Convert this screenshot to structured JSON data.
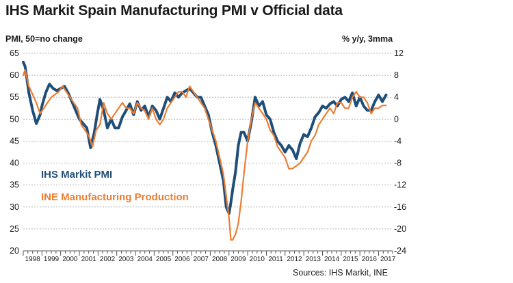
{
  "title": "IHS Markit Spain Manufacturing PMI v Official data",
  "source": "Sources: IHS Markit, INE",
  "colors": {
    "pmi": "#1f4e79",
    "ine": "#ed7d31",
    "grid": "#b3b3b3",
    "axis": "#555555"
  },
  "chart_data": {
    "type": "line",
    "ylabel_left": "PMI, 50=no change",
    "ylabel_right": "% y/y, 3mma",
    "ylim_left": [
      20,
      65
    ],
    "ylim_right": [
      -24,
      12
    ],
    "yticks_left": [
      "65",
      "60",
      "55",
      "50",
      "45",
      "40",
      "35",
      "30",
      "25",
      "20"
    ],
    "yticks_right": [
      "12",
      "8",
      "4",
      "0",
      "-4",
      "-8",
      "-12",
      "-16",
      "-20",
      "-24"
    ],
    "xlim": [
      1998,
      2017.75
    ],
    "x_categories": [
      "1998",
      "1999",
      "2000",
      "2001",
      "2002",
      "2003",
      "2004",
      "2005",
      "2006",
      "2007",
      "2008",
      "2009",
      "2010",
      "2011",
      "2012",
      "2013",
      "2014",
      "2015",
      "2016",
      "2017"
    ],
    "grid": "horizontal dashed",
    "legend_placement": "bottom-left inside plot",
    "series": [
      {
        "name": "IHS Markit PMI",
        "axis": "left",
        "color": "#1f4e79",
        "x": [
          1998.0,
          1998.1,
          1998.2,
          1998.3,
          1998.5,
          1998.7,
          1998.9,
          1999.0,
          1999.2,
          1999.4,
          1999.6,
          1999.8,
          2000.0,
          2000.2,
          2000.4,
          2000.6,
          2000.8,
          2001.0,
          2001.2,
          2001.4,
          2001.6,
          2001.8,
          2001.95,
          2002.1,
          2002.3,
          2002.5,
          2002.7,
          2002.9,
          2003.1,
          2003.3,
          2003.5,
          2003.7,
          2003.9,
          2004.1,
          2004.3,
          2004.5,
          2004.7,
          2004.9,
          2005.1,
          2005.3,
          2005.5,
          2005.7,
          2005.9,
          2006.1,
          2006.3,
          2006.5,
          2006.7,
          2006.9,
          2007.1,
          2007.3,
          2007.5,
          2007.7,
          2007.9,
          2008.1,
          2008.3,
          2008.5,
          2008.7,
          2008.85,
          2009.0,
          2009.1,
          2009.2,
          2009.35,
          2009.5,
          2009.65,
          2009.8,
          2010.0,
          2010.2,
          2010.4,
          2010.6,
          2010.8,
          2011.0,
          2011.2,
          2011.4,
          2011.6,
          2011.8,
          2012.0,
          2012.2,
          2012.4,
          2012.6,
          2012.8,
          2013.0,
          2013.2,
          2013.4,
          2013.6,
          2013.8,
          2014.0,
          2014.2,
          2014.4,
          2014.6,
          2014.8,
          2015.0,
          2015.2,
          2015.4,
          2015.6,
          2015.8,
          2016.0,
          2016.2,
          2016.4,
          2016.6,
          2016.8,
          2017.0,
          2017.2,
          2017.4
        ],
        "y": [
          63,
          62,
          59,
          56,
          52,
          49,
          51,
          53,
          56,
          58,
          57,
          56.5,
          57,
          57.5,
          56,
          54,
          52,
          50,
          49,
          48,
          43.5,
          47,
          51,
          54.5,
          52,
          48,
          50,
          48,
          48,
          50.5,
          52,
          53.5,
          51,
          54,
          52,
          53,
          50.5,
          53,
          52,
          50,
          52.5,
          55,
          54,
          56,
          55,
          56,
          56.5,
          57,
          56,
          55,
          55,
          53,
          51,
          47,
          44,
          40,
          36,
          30,
          28.5,
          31,
          34,
          38,
          44,
          47,
          47,
          45,
          49.5,
          55,
          53,
          54,
          51,
          50,
          47,
          45,
          44,
          42.5,
          44,
          43,
          41,
          44.5,
          46.5,
          46,
          48,
          50.5,
          51.5,
          53,
          52.5,
          53.5,
          54,
          53,
          54.5,
          55,
          54,
          56,
          53,
          55,
          53,
          52,
          52,
          54,
          55.5,
          54,
          55.5
        ]
      },
      {
        "name": "INE Manufacturing Production",
        "axis": "right",
        "color": "#ed7d31",
        "x": [
          1998.0,
          1998.1,
          1998.3,
          1998.5,
          1998.7,
          1998.9,
          1999.1,
          1999.3,
          1999.5,
          1999.7,
          1999.9,
          2000.1,
          2000.3,
          2000.5,
          2000.7,
          2000.9,
          2001.1,
          2001.3,
          2001.5,
          2001.7,
          2001.9,
          2002.1,
          2002.3,
          2002.5,
          2002.7,
          2002.9,
          2003.1,
          2003.3,
          2003.5,
          2003.7,
          2003.9,
          2004.1,
          2004.3,
          2004.5,
          2004.7,
          2004.9,
          2005.1,
          2005.3,
          2005.5,
          2005.7,
          2005.9,
          2006.1,
          2006.3,
          2006.5,
          2006.7,
          2006.9,
          2007.1,
          2007.3,
          2007.5,
          2007.7,
          2007.9,
          2008.1,
          2008.3,
          2008.5,
          2008.7,
          2008.85,
          2009.0,
          2009.1,
          2009.2,
          2009.35,
          2009.5,
          2009.65,
          2009.8,
          2010.0,
          2010.2,
          2010.4,
          2010.6,
          2010.8,
          2011.0,
          2011.2,
          2011.4,
          2011.6,
          2011.8,
          2012.0,
          2012.2,
          2012.4,
          2012.6,
          2012.8,
          2013.0,
          2013.2,
          2013.4,
          2013.6,
          2013.8,
          2014.0,
          2014.2,
          2014.4,
          2014.6,
          2014.8,
          2015.0,
          2015.2,
          2015.4,
          2015.6,
          2015.8,
          2016.0,
          2016.2,
          2016.4,
          2016.6,
          2016.8,
          2017.0,
          2017.2,
          2017.4
        ],
        "y": [
          8,
          9,
          6,
          4.5,
          3,
          1,
          2,
          3,
          4,
          4.5,
          5,
          6,
          5,
          4,
          3,
          2,
          -1,
          -2,
          -3,
          -5,
          -2,
          -1,
          3,
          1,
          0,
          1,
          2,
          3,
          2,
          2,
          1,
          3,
          2,
          1.5,
          0,
          2,
          0,
          -1,
          0,
          2,
          3,
          4,
          5,
          5,
          4,
          6,
          5,
          4,
          3,
          2,
          0,
          -2,
          -4,
          -7,
          -10,
          -14,
          -18,
          -22,
          -22,
          -21,
          -19,
          -15,
          -10,
          -4,
          0,
          3,
          2,
          1,
          0,
          -2,
          -3,
          -5,
          -6,
          -7,
          -9,
          -9,
          -8.5,
          -8,
          -7,
          -6,
          -4,
          -3,
          -1,
          0,
          1,
          2,
          1,
          3,
          3,
          2,
          2,
          4,
          5,
          4,
          4,
          3,
          1,
          2,
          2,
          2.5,
          2.5
        ]
      }
    ]
  }
}
